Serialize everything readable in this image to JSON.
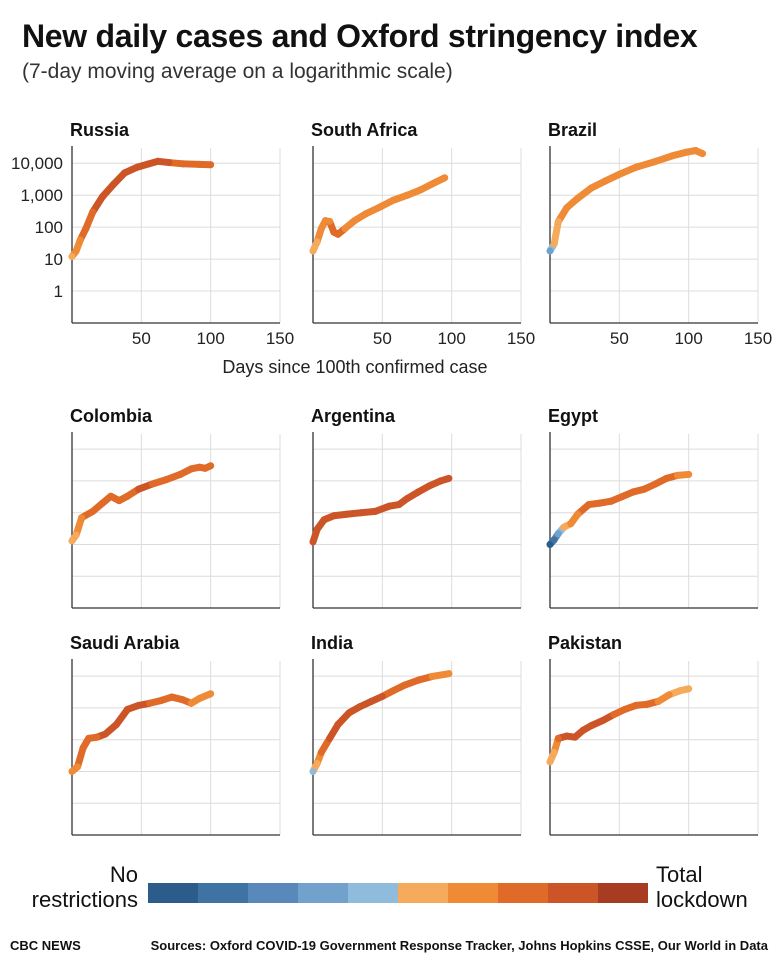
{
  "header": {
    "title": "New daily cases and Oxford stringency index",
    "subtitle": "(7-day moving average on a logarithmic scale)"
  },
  "legend": {
    "low_line1": "No",
    "low_line2": "restrictions",
    "high_line1": "Total",
    "high_line2": "lockdown",
    "colors": [
      "#2b5c8a",
      "#3f73a3",
      "#5989ba",
      "#72a1cb",
      "#8fbbdc",
      "#f5aa5c",
      "#ef8a36",
      "#e06b28",
      "#cc5527",
      "#a83c22"
    ]
  },
  "footer": {
    "brand": "CBC NEWS",
    "sources": "Sources: Oxford COVID-19 Government Response Tracker, Johns Hopkins CSSE, Our World in Data"
  },
  "chart_data": {
    "type": "line",
    "log_scale": true,
    "ylim": [
      0.1,
      30000
    ],
    "y_ticks": [
      1,
      10,
      100,
      1000,
      10000
    ],
    "y_tick_labels": [
      "1",
      "10",
      "100",
      "1,000",
      "10,000"
    ],
    "xlim": [
      0,
      150
    ],
    "x_ticks": [
      50,
      100,
      150
    ],
    "x_tick_labels": [
      "50",
      "100",
      "150"
    ],
    "xlabel": "Days since 100th confirmed case",
    "grid": true,
    "panels": [
      {
        "name": "Russia",
        "points": [
          [
            0,
            12,
            0.6
          ],
          [
            3,
            18,
            0.65
          ],
          [
            6,
            40,
            0.7
          ],
          [
            10,
            90,
            0.75
          ],
          [
            15,
            300,
            0.8
          ],
          [
            22,
            900,
            0.88
          ],
          [
            30,
            2200,
            0.9
          ],
          [
            38,
            5000,
            0.9
          ],
          [
            47,
            7500,
            0.9
          ],
          [
            55,
            9500,
            0.85
          ],
          [
            62,
            11500,
            0.85
          ],
          [
            70,
            10500,
            0.85
          ],
          [
            80,
            9600,
            0.8
          ],
          [
            92,
            9200,
            0.8
          ],
          [
            100,
            9000,
            0.8
          ]
        ]
      },
      {
        "name": "South Africa",
        "points": [
          [
            0,
            18,
            0.5
          ],
          [
            3,
            35,
            0.55
          ],
          [
            6,
            90,
            0.7
          ],
          [
            9,
            160,
            0.72
          ],
          [
            12,
            150,
            0.72
          ],
          [
            15,
            70,
            0.75
          ],
          [
            18,
            60,
            0.75
          ],
          [
            23,
            90,
            0.72
          ],
          [
            30,
            160,
            0.72
          ],
          [
            38,
            260,
            0.72
          ],
          [
            48,
            420,
            0.72
          ],
          [
            58,
            700,
            0.72
          ],
          [
            68,
            1000,
            0.72
          ],
          [
            78,
            1500,
            0.72
          ],
          [
            88,
            2500,
            0.72
          ],
          [
            95,
            3500,
            0.72
          ]
        ]
      },
      {
        "name": "Brazil",
        "points": [
          [
            0,
            18,
            0.3
          ],
          [
            3,
            30,
            0.5
          ],
          [
            6,
            150,
            0.6
          ],
          [
            12,
            400,
            0.65
          ],
          [
            20,
            800,
            0.65
          ],
          [
            30,
            1700,
            0.65
          ],
          [
            40,
            2800,
            0.65
          ],
          [
            50,
            4500,
            0.65
          ],
          [
            62,
            7500,
            0.7
          ],
          [
            75,
            11000,
            0.7
          ],
          [
            88,
            17000,
            0.72
          ],
          [
            98,
            22000,
            0.72
          ],
          [
            105,
            25000,
            0.72
          ],
          [
            110,
            20000,
            0.72
          ]
        ]
      },
      {
        "name": "Colombia",
        "points": [
          [
            0,
            13,
            0.6
          ],
          [
            3,
            20,
            0.6
          ],
          [
            7,
            70,
            0.72
          ],
          [
            15,
            110,
            0.75
          ],
          [
            22,
            200,
            0.78
          ],
          [
            28,
            330,
            0.78
          ],
          [
            34,
            240,
            0.78
          ],
          [
            40,
            330,
            0.8
          ],
          [
            48,
            550,
            0.85
          ],
          [
            58,
            800,
            0.82
          ],
          [
            68,
            1100,
            0.8
          ],
          [
            78,
            1600,
            0.75
          ],
          [
            86,
            2400,
            0.75
          ],
          [
            92,
            2700,
            0.75
          ],
          [
            96,
            2500,
            0.75
          ],
          [
            100,
            3000,
            0.75
          ]
        ]
      },
      {
        "name": "Argentina",
        "points": [
          [
            0,
            12,
            0.9
          ],
          [
            3,
            30,
            0.9
          ],
          [
            8,
            60,
            0.9
          ],
          [
            15,
            80,
            0.9
          ],
          [
            25,
            90,
            0.9
          ],
          [
            35,
            100,
            0.88
          ],
          [
            45,
            110,
            0.85
          ],
          [
            55,
            160,
            0.85
          ],
          [
            62,
            180,
            0.85
          ],
          [
            68,
            280,
            0.88
          ],
          [
            76,
            450,
            0.88
          ],
          [
            84,
            700,
            0.9
          ],
          [
            92,
            1000,
            0.9
          ],
          [
            98,
            1200,
            0.9
          ]
        ]
      },
      {
        "name": "Egypt",
        "points": [
          [
            0,
            10,
            0.05
          ],
          [
            3,
            14,
            0.15
          ],
          [
            6,
            22,
            0.3
          ],
          [
            10,
            35,
            0.5
          ],
          [
            15,
            45,
            0.68
          ],
          [
            20,
            90,
            0.72
          ],
          [
            28,
            180,
            0.75
          ],
          [
            36,
            200,
            0.75
          ],
          [
            44,
            230,
            0.75
          ],
          [
            52,
            320,
            0.75
          ],
          [
            60,
            450,
            0.75
          ],
          [
            68,
            550,
            0.75
          ],
          [
            76,
            800,
            0.75
          ],
          [
            84,
            1200,
            0.75
          ],
          [
            92,
            1500,
            0.72
          ],
          [
            100,
            1600,
            0.72
          ]
        ]
      },
      {
        "name": "Saudi Arabia",
        "points": [
          [
            0,
            10,
            0.65
          ],
          [
            4,
            14,
            0.72
          ],
          [
            8,
            55,
            0.8
          ],
          [
            12,
            110,
            0.82
          ],
          [
            18,
            120,
            0.82
          ],
          [
            24,
            150,
            0.85
          ],
          [
            32,
            300,
            0.88
          ],
          [
            40,
            900,
            0.88
          ],
          [
            48,
            1200,
            0.85
          ],
          [
            56,
            1400,
            0.82
          ],
          [
            64,
            1700,
            0.8
          ],
          [
            72,
            2200,
            0.82
          ],
          [
            80,
            1800,
            0.78
          ],
          [
            86,
            1400,
            0.72
          ],
          [
            92,
            2000,
            0.65
          ],
          [
            100,
            2800,
            0.62
          ]
        ]
      },
      {
        "name": "India",
        "points": [
          [
            0,
            10,
            0.4
          ],
          [
            3,
            18,
            0.6
          ],
          [
            6,
            40,
            0.78
          ],
          [
            12,
            110,
            0.88
          ],
          [
            18,
            300,
            0.9
          ],
          [
            26,
            700,
            0.9
          ],
          [
            34,
            1100,
            0.9
          ],
          [
            42,
            1600,
            0.88
          ],
          [
            50,
            2300,
            0.85
          ],
          [
            58,
            3500,
            0.8
          ],
          [
            66,
            5200,
            0.78
          ],
          [
            76,
            7500,
            0.75
          ],
          [
            86,
            9800,
            0.72
          ],
          [
            98,
            12000,
            0.72
          ]
        ]
      },
      {
        "name": "Pakistan",
        "points": [
          [
            0,
            20,
            0.5
          ],
          [
            3,
            40,
            0.6
          ],
          [
            6,
            110,
            0.82
          ],
          [
            12,
            130,
            0.85
          ],
          [
            18,
            120,
            0.88
          ],
          [
            24,
            200,
            0.88
          ],
          [
            30,
            280,
            0.88
          ],
          [
            38,
            400,
            0.85
          ],
          [
            46,
            620,
            0.82
          ],
          [
            54,
            900,
            0.8
          ],
          [
            62,
            1200,
            0.78
          ],
          [
            70,
            1300,
            0.78
          ],
          [
            78,
            1600,
            0.72
          ],
          [
            86,
            2600,
            0.62
          ],
          [
            94,
            3500,
            0.6
          ],
          [
            100,
            4000,
            0.58
          ]
        ]
      }
    ]
  }
}
